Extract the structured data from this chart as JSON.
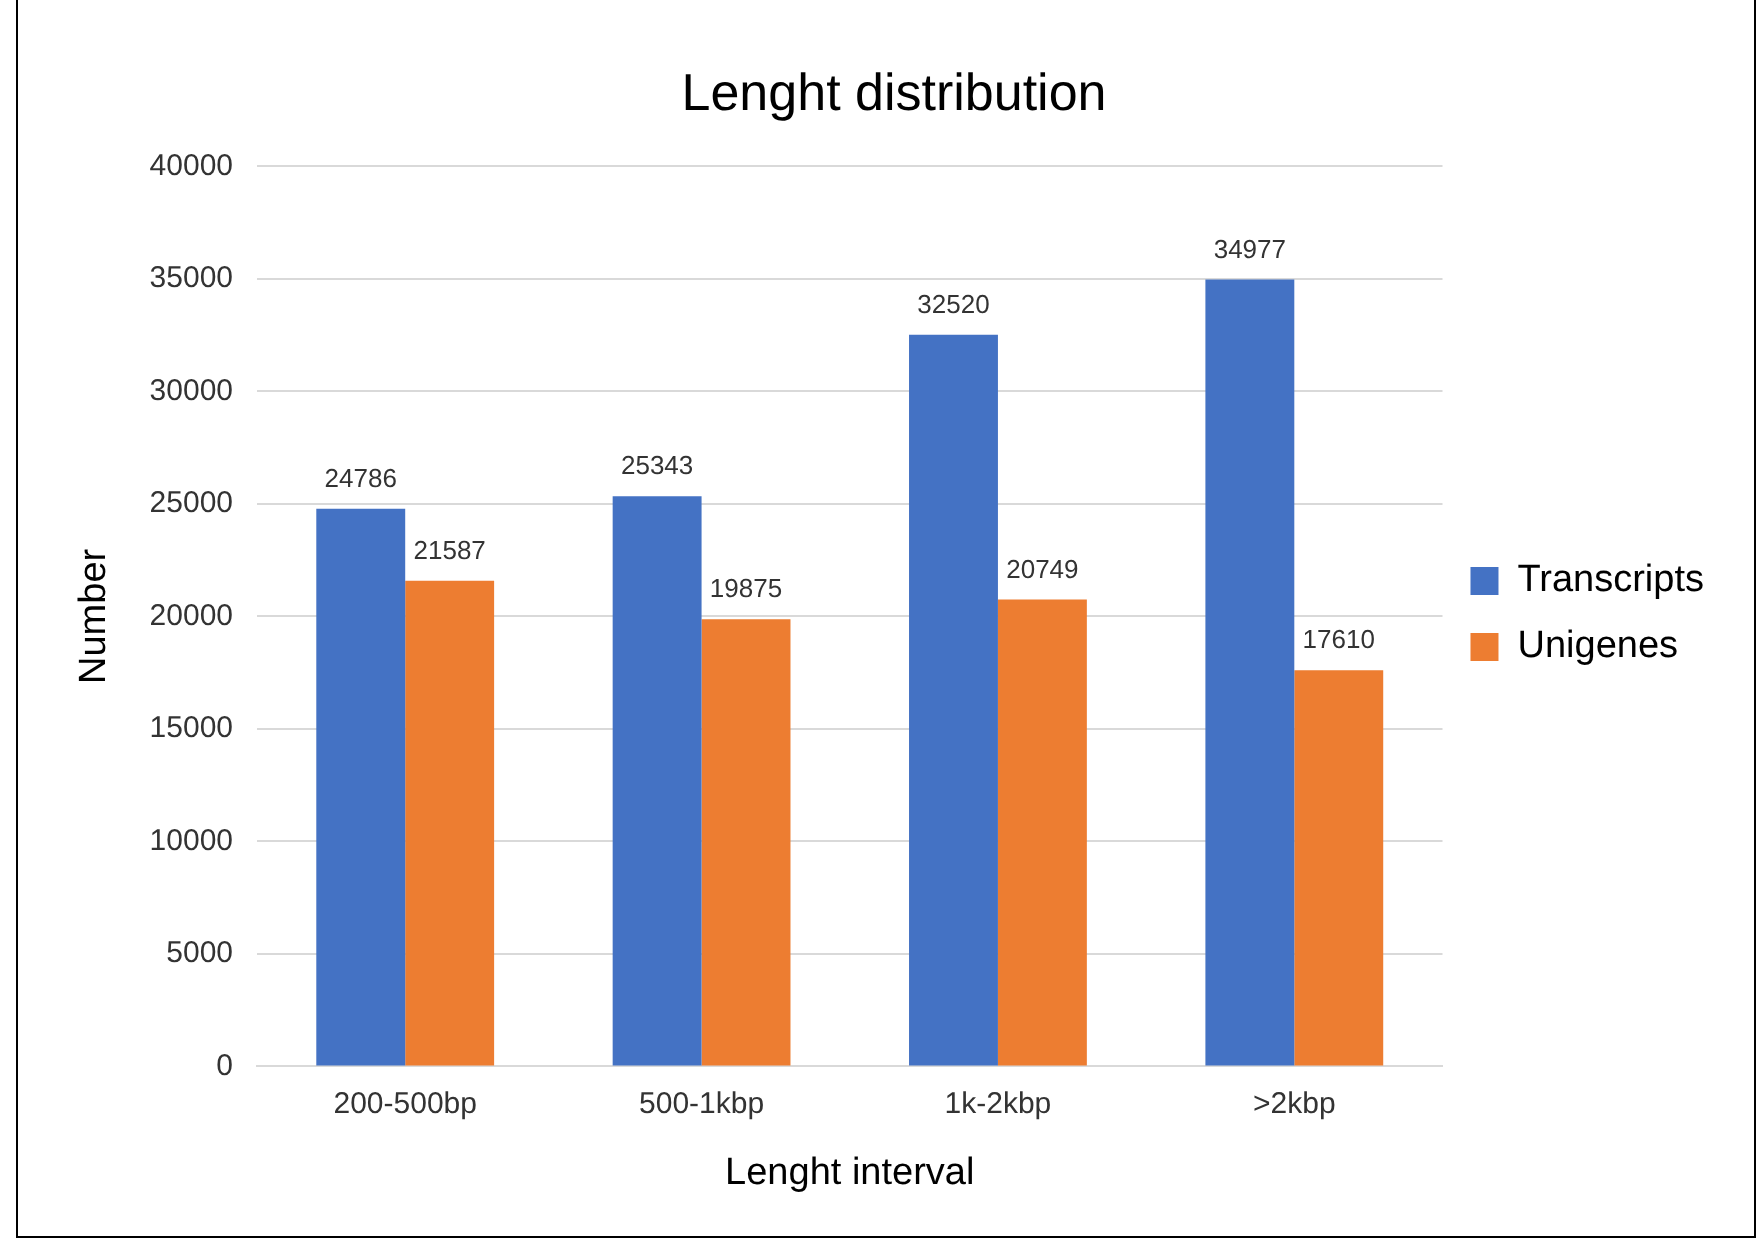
{
  "chart_data": {
    "type": "bar",
    "title": "Lenght distribution",
    "xlabel": "Lenght interval",
    "ylabel": "Number",
    "categories": [
      "200-500bp",
      "500-1kbp",
      "1k-2kbp",
      ">2kbp"
    ],
    "series": [
      {
        "name": "Transcripts",
        "color": "#4472c4",
        "values": [
          24786,
          25343,
          32520,
          34977
        ]
      },
      {
        "name": "Unigenes",
        "color": "#ed7d31",
        "values": [
          21587,
          19875,
          20749,
          17610
        ]
      }
    ],
    "ylim": [
      0,
      40000
    ],
    "yticks": [
      0,
      5000,
      10000,
      15000,
      20000,
      25000,
      30000,
      35000,
      40000
    ],
    "grid": "y",
    "legend": "right",
    "data_labels": true
  }
}
